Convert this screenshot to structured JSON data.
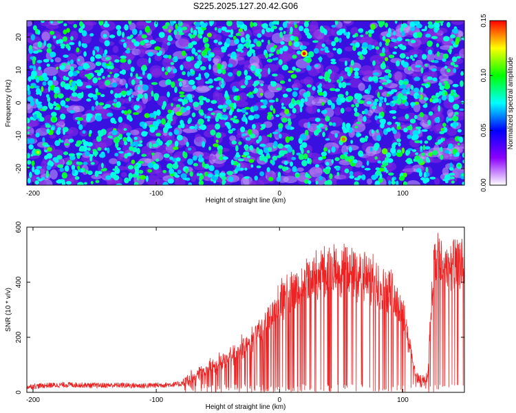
{
  "chart_data": [
    {
      "type": "heatmap",
      "title": "S225.2025.127.20.42.G06",
      "xlabel": "Height of straight line (km)",
      "ylabel": "Frequency (Hz)",
      "xlim": [
        -205,
        150
      ],
      "ylim": [
        -25,
        25
      ],
      "x_ticks": [
        -200,
        -100,
        0,
        100
      ],
      "y_ticks": [
        -20,
        -10,
        0,
        10,
        20
      ],
      "colorbar": {
        "label": "Normalized spectral amplitude",
        "range": [
          0,
          0.15
        ],
        "ticks": [
          "0.00",
          "0.05",
          "0.10",
          "0.15"
        ],
        "colors": [
          "#ffffff",
          "#8b00ff",
          "#0000ff",
          "#00ffff",
          "#00ff00",
          "#ffff00",
          "#ff0000"
        ]
      },
      "peaks": [
        {
          "x": 20,
          "y": 15,
          "value": 0.15
        },
        {
          "x": 52,
          "y": -11,
          "value": 0.14
        },
        {
          "x": -196,
          "y": -15,
          "value": 0.12
        },
        {
          "x": -183,
          "y": -5,
          "value": 0.1
        }
      ]
    },
    {
      "type": "line",
      "xlabel": "Height of straight line (km)",
      "ylabel": "SNR (10 * v/v)",
      "xlim": [
        -205,
        150
      ],
      "ylim": [
        0,
        600
      ],
      "x_ticks": [
        -200,
        -100,
        0,
        100
      ],
      "y_ticks": [
        0,
        200,
        400,
        600
      ],
      "color": "#ee2222",
      "series": [
        {
          "x": [
            -205,
            -190,
            -170,
            -150,
            -130,
            -110,
            -90,
            -80,
            -75,
            -65,
            -55,
            -45,
            -35,
            -25,
            -15,
            -5,
            0,
            10,
            20,
            30,
            40,
            50,
            60,
            70,
            80,
            90,
            100,
            110,
            115,
            120,
            125,
            130,
            140,
            150
          ],
          "y": [
            20,
            25,
            28,
            25,
            26,
            24,
            28,
            30,
            50,
            80,
            110,
            130,
            170,
            200,
            260,
            330,
            370,
            420,
            460,
            490,
            500,
            510,
            500,
            480,
            450,
            420,
            340,
            80,
            40,
            60,
            530,
            540,
            530,
            530
          ]
        }
      ]
    }
  ]
}
